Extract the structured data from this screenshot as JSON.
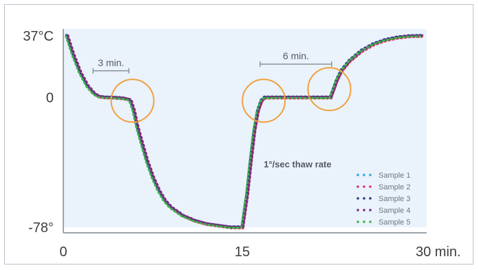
{
  "chart_data": {
    "type": "line",
    "title": "",
    "xlabel": "",
    "ylabel": "",
    "xlim": [
      0,
      30
    ],
    "ylim": [
      -78,
      37
    ],
    "x_ticks": [
      {
        "value": 0,
        "label": "0"
      },
      {
        "value": 15,
        "label": "15"
      },
      {
        "value": 30,
        "label": "30 min."
      }
    ],
    "y_ticks": [
      {
        "value": 37,
        "label": "37°C"
      },
      {
        "value": 0,
        "label": "0"
      },
      {
        "value": -78,
        "label": "-78°"
      }
    ],
    "grid": false,
    "legend_position": "bottom-right",
    "series": [
      {
        "name": "Sample 1",
        "color": "#29a9e0",
        "offset": [
          0.0,
          0.0
        ]
      },
      {
        "name": "Sample 2",
        "color": "#e0336e",
        "offset": [
          0.06,
          -0.6
        ]
      },
      {
        "name": "Sample 3",
        "color": "#2c3a8c",
        "offset": [
          -0.05,
          0.5
        ]
      },
      {
        "name": "Sample 4",
        "color": "#7b2d7e",
        "offset": [
          0.1,
          0.3
        ]
      },
      {
        "name": "Sample 5",
        "color": "#3bb54a",
        "offset": [
          -0.08,
          -0.3
        ]
      }
    ],
    "curve": {
      "x": [
        0.3,
        0.8,
        1.4,
        2.0,
        2.6,
        3.0,
        3.5,
        4.0,
        5.0,
        5.6,
        5.9,
        6.2,
        6.6,
        7.0,
        7.5,
        8.0,
        8.5,
        9.0,
        10.0,
        11.0,
        12.0,
        13.0,
        14.0,
        15.0,
        15.4,
        15.7,
        16.0,
        16.3,
        16.6,
        16.9,
        17.2,
        18.0,
        19.0,
        20.0,
        21.0,
        22.0,
        22.4,
        22.6,
        22.9,
        23.3,
        24.0,
        25.0,
        26.0,
        27.0,
        28.0,
        29.0,
        30.0
      ],
      "y": [
        37,
        26,
        15,
        7,
        2,
        0.5,
        0,
        0,
        -0.5,
        -1.5,
        -8,
        -18,
        -28,
        -38,
        -48,
        -56,
        -62,
        -66,
        -71,
        -74,
        -76,
        -77,
        -78,
        -78,
        -58,
        -38,
        -20,
        -8,
        -2,
        0,
        0,
        0,
        0,
        0,
        0,
        0,
        0,
        4,
        10,
        16,
        22,
        28,
        32,
        34.5,
        36,
        36.8,
        37
      ]
    },
    "annotations": [
      {
        "text": "3 min.",
        "type": "span",
        "x0": 2.5,
        "x1": 5.5,
        "y": 16
      },
      {
        "text": "6 min.",
        "type": "span",
        "x0": 16.5,
        "x1": 22.5,
        "y": 20
      },
      {
        "text": "1°/sec thaw rate",
        "type": "label",
        "x": 16.8,
        "y": -42
      }
    ],
    "highlights": [
      {
        "x": 5.8,
        "y": -2,
        "color": "#f0a03c"
      },
      {
        "x": 16.8,
        "y": -2,
        "color": "#f0a03c"
      },
      {
        "x": 22.3,
        "y": 5,
        "color": "#f0a03c"
      }
    ]
  }
}
